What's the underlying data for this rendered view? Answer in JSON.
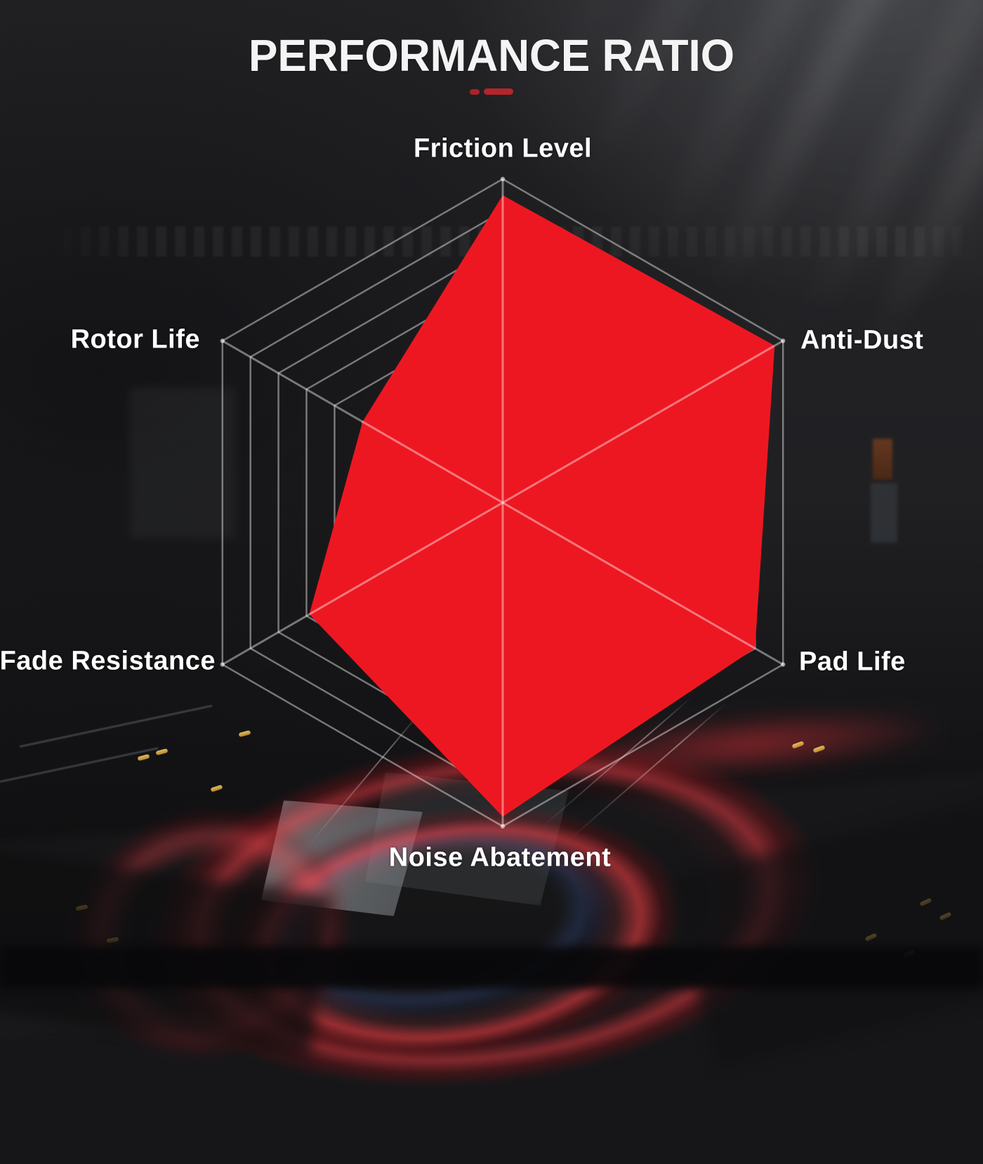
{
  "title": "PERFORMANCE RATIO",
  "chart_data": {
    "type": "radar",
    "categories": [
      "Friction Level",
      "Anti-Dust",
      "Pad Life",
      "Noise Abatement",
      "Fade Resistance",
      "Rotor Life"
    ],
    "values": [
      95,
      97,
      90,
      97,
      69,
      50
    ],
    "max": 100,
    "grid_rings_percent": [
      50,
      60,
      70,
      80,
      90,
      100
    ],
    "start_axis": "top",
    "direction": "clockwise",
    "legend": "none",
    "grid": "on"
  },
  "theme": {
    "accent_red": "#ED1721",
    "underline_red": "#A8232A",
    "underline_red_bright": "#B3262C",
    "grid_line": "rgba(255,255,255,0.42)",
    "label_color": "#FFFFFF",
    "background_dark": "#131315",
    "background_mid": "#232325",
    "background_light": "#3D3E40",
    "glow_red": "#F03C44",
    "platform_blue": "#466EC8",
    "platform_yellow": "#E4B33C"
  }
}
